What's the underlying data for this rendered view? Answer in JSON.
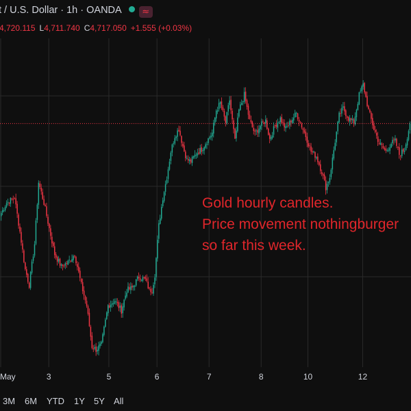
{
  "header": {
    "symbol_title": "t / U.S. Dollar · 1h · OANDA",
    "wave_icon": "≈",
    "ohlc": {
      "h": "4,720.115",
      "l_label": "L",
      "l": "4,711.740",
      "c_label": "C",
      "c": "4,717.050",
      "change": "+1.555 (+0.03%)"
    }
  },
  "colors": {
    "up": "#22ab94",
    "down": "#f23645",
    "background": "#0f0f0f",
    "grid": "#2a2a2a",
    "price_line": "#f23645",
    "annotation": "#e0262b"
  },
  "annotation": {
    "lines": [
      "Gold hourly candles.",
      "Price movement nothingburger",
      "so far this week."
    ]
  },
  "chart_data": {
    "type": "candlestick",
    "title": "",
    "xlabel": "",
    "ylabel": "",
    "interval": "1h",
    "ylim": [
      4480,
      4800
    ],
    "current_price": 4717.05,
    "grid": true,
    "x_tick_labels": [
      {
        "label": "May",
        "index": 0
      },
      {
        "label": "3",
        "index": 36
      },
      {
        "label": "5",
        "index": 81
      },
      {
        "label": "6",
        "index": 117
      },
      {
        "label": "7",
        "index": 156
      },
      {
        "label": "8",
        "index": 195
      },
      {
        "label": "10",
        "index": 230
      },
      {
        "label": "12",
        "index": 271
      }
    ],
    "close_anchors": [
      [
        0,
        4630
      ],
      [
        4,
        4640
      ],
      [
        10,
        4645
      ],
      [
        14,
        4612
      ],
      [
        18,
        4575
      ],
      [
        21,
        4560
      ],
      [
        25,
        4600
      ],
      [
        28,
        4660
      ],
      [
        32,
        4640
      ],
      [
        36,
        4615
      ],
      [
        40,
        4590
      ],
      [
        45,
        4578
      ],
      [
        50,
        4582
      ],
      [
        55,
        4590
      ],
      [
        60,
        4560
      ],
      [
        64,
        4540
      ],
      [
        68,
        4500
      ],
      [
        71,
        4497
      ],
      [
        75,
        4502
      ],
      [
        80,
        4540
      ],
      [
        85,
        4545
      ],
      [
        90,
        4535
      ],
      [
        94,
        4555
      ],
      [
        98,
        4557
      ],
      [
        103,
        4568
      ],
      [
        108,
        4565
      ],
      [
        111,
        4555
      ],
      [
        113,
        4555
      ],
      [
        115,
        4570
      ],
      [
        118,
        4618
      ],
      [
        121,
        4645
      ],
      [
        124,
        4665
      ],
      [
        127,
        4690
      ],
      [
        130,
        4705
      ],
      [
        133,
        4712
      ],
      [
        136,
        4695
      ],
      [
        139,
        4682
      ],
      [
        142,
        4680
      ],
      [
        146,
        4688
      ],
      [
        150,
        4692
      ],
      [
        154,
        4700
      ],
      [
        158,
        4708
      ],
      [
        161,
        4730
      ],
      [
        164,
        4737
      ],
      [
        168,
        4718
      ],
      [
        171,
        4740
      ],
      [
        175,
        4700
      ],
      [
        178,
        4730
      ],
      [
        182,
        4745
      ],
      [
        186,
        4720
      ],
      [
        190,
        4707
      ],
      [
        194,
        4715
      ],
      [
        198,
        4720
      ],
      [
        201,
        4702
      ],
      [
        205,
        4715
      ],
      [
        209,
        4722
      ],
      [
        213,
        4712
      ],
      [
        217,
        4720
      ],
      [
        221,
        4727
      ],
      [
        224,
        4718
      ],
      [
        228,
        4705
      ],
      [
        232,
        4690
      ],
      [
        236,
        4685
      ],
      [
        240,
        4670
      ],
      [
        243,
        4655
      ],
      [
        246,
        4665
      ],
      [
        250,
        4700
      ],
      [
        253,
        4725
      ],
      [
        256,
        4732
      ],
      [
        260,
        4722
      ],
      [
        264,
        4718
      ],
      [
        268,
        4745
      ],
      [
        271,
        4755
      ],
      [
        275,
        4730
      ],
      [
        279,
        4712
      ],
      [
        283,
        4698
      ],
      [
        288,
        4690
      ],
      [
        292,
        4698
      ],
      [
        295,
        4700
      ],
      [
        298,
        4687
      ],
      [
        302,
        4692
      ],
      [
        306,
        4717
      ]
    ]
  },
  "x_axis": {
    "labels": [
      "May",
      "3",
      "5",
      "6",
      "7",
      "8",
      "10",
      "12"
    ]
  },
  "range_bar": {
    "buttons": [
      "3M",
      "6M",
      "YTD",
      "1Y",
      "5Y",
      "All"
    ]
  }
}
